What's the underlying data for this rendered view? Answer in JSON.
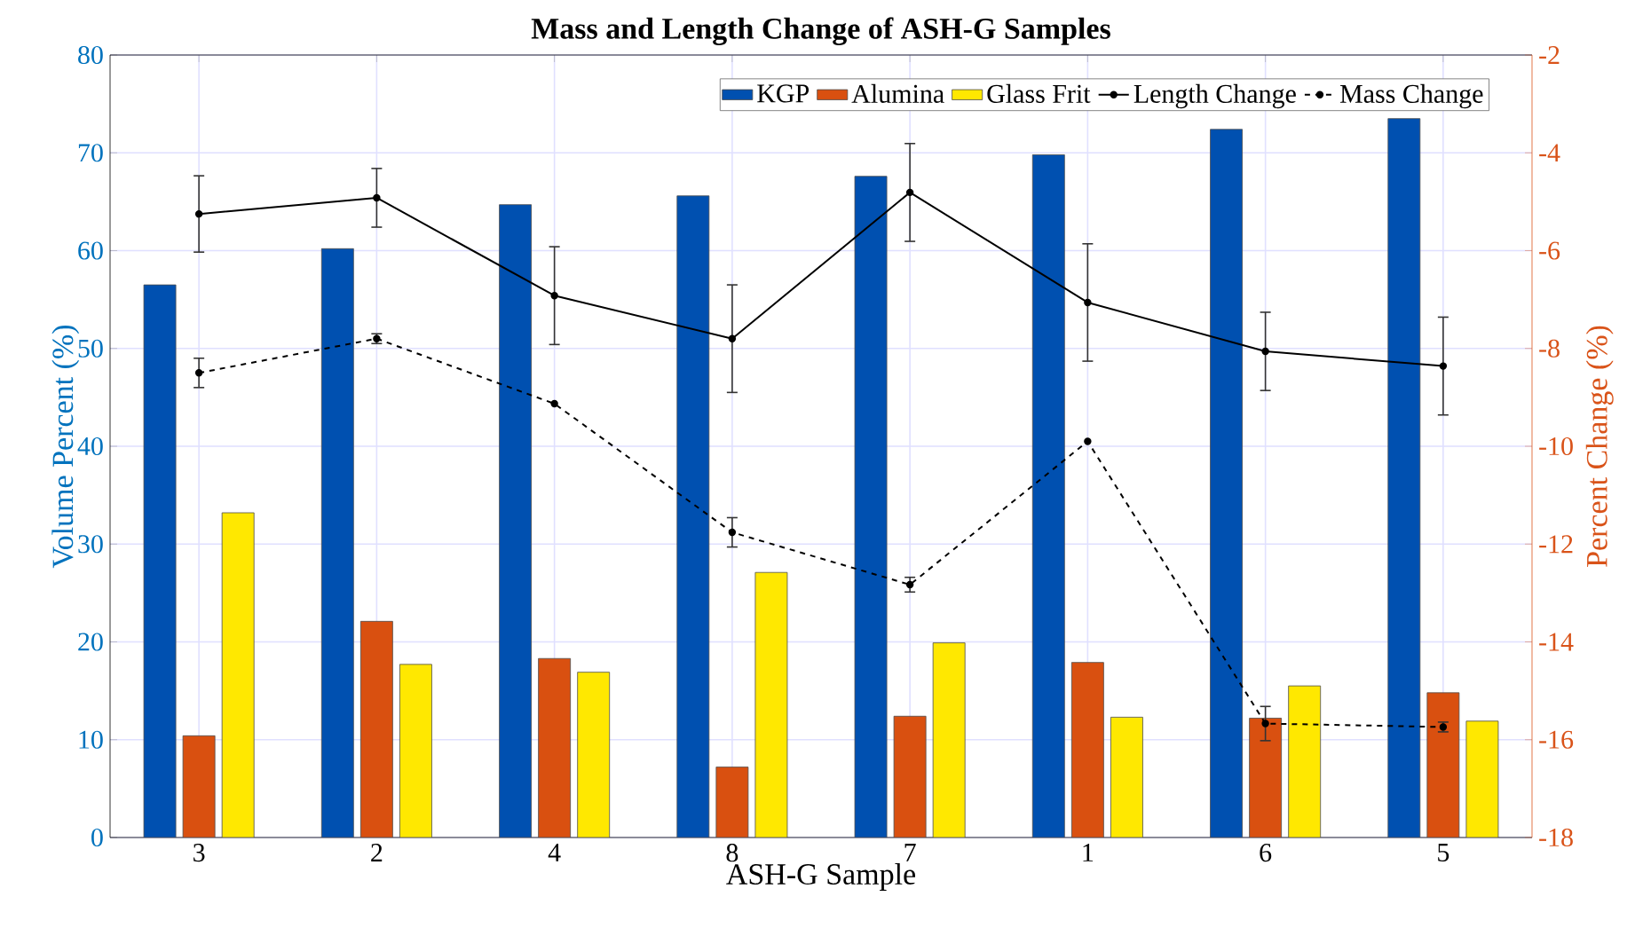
{
  "chart_data": {
    "type": "bar",
    "title": "Mass and Length Change of ASH-G Samples",
    "xlabel": "ASH-G Sample",
    "ylabel": "Volume Percent (%)",
    "y2label": "Percent Change (%)",
    "categories": [
      "3",
      "2",
      "4",
      "8",
      "7",
      "1",
      "6",
      "5"
    ],
    "series": [
      {
        "name": "KGP",
        "color": "#0050b0",
        "values": [
          56.5,
          60.2,
          64.7,
          65.6,
          67.6,
          69.8,
          72.4,
          73.5
        ]
      },
      {
        "name": "Alumina",
        "color": "#d95010",
        "values": [
          10.4,
          22.1,
          18.3,
          7.2,
          12.4,
          17.9,
          12.2,
          14.8
        ]
      },
      {
        "name": "Glass Frit",
        "color": "#ffe800",
        "values": [
          33.2,
          17.7,
          16.9,
          27.1,
          19.9,
          12.3,
          15.5,
          11.9
        ]
      },
      {
        "name": "Length Change",
        "type": "line",
        "axis": "y2",
        "color": "#000000",
        "line_style": "solid",
        "marker": "circle",
        "values": [
          -5.25,
          -4.92,
          -6.92,
          -7.8,
          -4.81,
          -7.06,
          -8.06,
          -8.36
        ],
        "errors": [
          0.78,
          0.6,
          1.0,
          1.1,
          1.0,
          1.2,
          0.8,
          1.0
        ]
      },
      {
        "name": "Mass Change",
        "type": "line",
        "axis": "y2",
        "color": "#000000",
        "line_style": "dashed",
        "marker": "circle",
        "values": [
          -8.5,
          -7.8,
          -9.13,
          -11.76,
          -12.83,
          -9.9,
          -15.67,
          -15.74
        ],
        "errors": [
          0.3,
          0.1,
          null,
          0.3,
          0.15,
          null,
          0.35,
          0.1
        ]
      }
    ],
    "ylim": [
      0,
      80
    ],
    "yticks": [
      0,
      10,
      20,
      30,
      40,
      50,
      60,
      70,
      80
    ],
    "y2lim": [
      -18,
      -2
    ],
    "y2ticks": [
      -18,
      -16,
      -14,
      -12,
      -10,
      -8,
      -6,
      -4,
      -2
    ],
    "grid": true,
    "legend": "top right"
  }
}
